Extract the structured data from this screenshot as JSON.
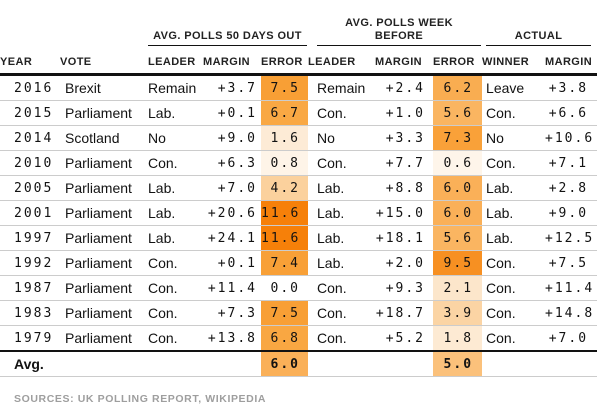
{
  "chart_data": {
    "type": "table",
    "groups": [
      {
        "label": "AVG. POLLS 50 DAYS OUT"
      },
      {
        "label": "AVG. POLLS WEEK\nBEFORE"
      },
      {
        "label": "ACTUAL"
      }
    ],
    "columns": [
      "YEAR",
      "VOTE",
      "LEADER",
      "MARGIN",
      "ERROR",
      "LEADER",
      "MARGIN",
      "ERROR",
      "WINNER",
      "MARGIN"
    ],
    "rows": [
      {
        "year": "2016",
        "vote": "Brexit",
        "leader_50": "Remain",
        "margin_50": "+3.7",
        "error_50": "7.5",
        "error_50_color": "#F89F35",
        "leader_wk": "Remain",
        "margin_wk": "+2.4",
        "error_wk": "6.2",
        "error_wk_color": "#F9AD51",
        "winner": "Leave",
        "margin_actual": "+3.8"
      },
      {
        "year": "2015",
        "vote": "Parliament",
        "leader_50": "Lab.",
        "margin_50": "+0.1",
        "error_50": "6.7",
        "error_50_color": "#F9A844",
        "leader_wk": "Con.",
        "margin_wk": "+1.0",
        "error_wk": "5.6",
        "error_wk_color": "#FAB561",
        "winner": "Con.",
        "margin_actual": "+6.6"
      },
      {
        "year": "2014",
        "vote": "Scotland",
        "leader_50": "No",
        "margin_50": "+9.0",
        "error_50": "1.6",
        "error_50_color": "#FDEBD6",
        "leader_wk": "No",
        "margin_wk": "+3.3",
        "error_wk": "7.3",
        "error_wk_color": "#F9A139",
        "winner": "No",
        "margin_actual": "+10.6"
      },
      {
        "year": "2010",
        "vote": "Parliament",
        "leader_50": "Con.",
        "margin_50": "+6.3",
        "error_50": "0.8",
        "error_50_color": "#FEF4E8",
        "leader_wk": "Con.",
        "margin_wk": "+7.7",
        "error_wk": "0.6",
        "error_wk_color": "#FEF5EA",
        "winner": "Con.",
        "margin_actual": "+7.1"
      },
      {
        "year": "2005",
        "vote": "Parliament",
        "leader_50": "Lab.",
        "margin_50": "+7.0",
        "error_50": "4.2",
        "error_50_color": "#FBD19D",
        "leader_wk": "Lab.",
        "margin_wk": "+8.8",
        "error_wk": "6.0",
        "error_wk_color": "#FAB058",
        "winner": "Lab.",
        "margin_actual": "+2.8"
      },
      {
        "year": "2001",
        "vote": "Parliament",
        "leader_50": "Lab.",
        "margin_50": "+20.6",
        "error_50": "11.6",
        "error_50_color": "#F68009",
        "leader_wk": "Lab.",
        "margin_wk": "+15.0",
        "error_wk": "6.0",
        "error_wk_color": "#FAB058",
        "winner": "Lab.",
        "margin_actual": "+9.0"
      },
      {
        "year": "1997",
        "vote": "Parliament",
        "leader_50": "Lab.",
        "margin_50": "+24.1",
        "error_50": "11.6",
        "error_50_color": "#F68009",
        "leader_wk": "Lab.",
        "margin_wk": "+18.1",
        "error_wk": "5.6",
        "error_wk_color": "#FAB561",
        "winner": "Lab.",
        "margin_actual": "+12.5"
      },
      {
        "year": "1992",
        "vote": "Parliament",
        "leader_50": "Con.",
        "margin_50": "+0.1",
        "error_50": "7.4",
        "error_50_color": "#F8A037",
        "leader_wk": "Lab.",
        "margin_wk": "+2.0",
        "error_wk": "9.5",
        "error_wk_color": "#F79022",
        "winner": "Con.",
        "margin_actual": "+7.5"
      },
      {
        "year": "1987",
        "vote": "Parliament",
        "leader_50": "Con.",
        "margin_50": "+11.4",
        "error_50": "0.0",
        "error_50_color": "#FFFFFF",
        "leader_wk": "Con.",
        "margin_wk": "+9.3",
        "error_wk": "2.1",
        "error_wk_color": "#FCE6CB",
        "winner": "Con.",
        "margin_actual": "+11.4"
      },
      {
        "year": "1983",
        "vote": "Parliament",
        "leader_50": "Con.",
        "margin_50": "+7.3",
        "error_50": "7.5",
        "error_50_color": "#F89F35",
        "leader_wk": "Con.",
        "margin_wk": "+18.7",
        "error_wk": "3.9",
        "error_wk_color": "#FBD4A4",
        "winner": "Con.",
        "margin_actual": "+14.8"
      },
      {
        "year": "1979",
        "vote": "Parliament",
        "leader_50": "Con.",
        "margin_50": "+13.8",
        "error_50": "6.8",
        "error_50_color": "#F9A742",
        "leader_wk": "Con.",
        "margin_wk": "+5.2",
        "error_wk": "1.8",
        "error_wk_color": "#FDEAD3",
        "winner": "Con.",
        "margin_actual": "+7.0"
      }
    ],
    "avg_row": {
      "label": "Avg.",
      "error_50": "6.0",
      "error_50_color": "#FAB058",
      "error_wk": "5.0",
      "error_wk_color": "#FBC17B"
    },
    "source_note": "SOURCES: UK POLLING REPORT, WIKIPEDIA",
    "error_scale": {
      "min_color": "#FFFFFF",
      "max_color": "#F68009",
      "max_value": 11.6
    }
  }
}
